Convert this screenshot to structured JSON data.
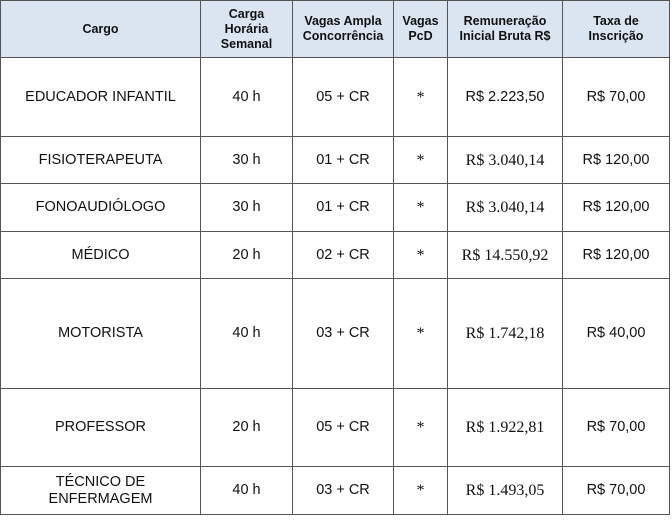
{
  "table": {
    "header": [
      "Cargo",
      "Carga\nHorária\nSemanal",
      "Vagas Ampla\nConcorrência",
      "Vagas\nPcD",
      "Remuneração\nInicial Bruta R$",
      "Taxa de\nInscrição"
    ],
    "rows": [
      [
        "EDUCADOR INFANTIL",
        "40 h",
        "05 + CR",
        "*",
        "R$ 2.223,50",
        "R$ 70,00"
      ],
      [
        "FISIOTERAPEUTA",
        "30 h",
        "01 + CR",
        "*",
        "R$ 3.040,14",
        "R$ 120,00"
      ],
      [
        "FONOAUDIÓLOGO",
        "30 h",
        "01 + CR",
        "*",
        "R$ 3.040,14",
        "R$ 120,00"
      ],
      [
        "MÉDICO",
        "20 h",
        "02 + CR",
        "*",
        "R$ 14.550,92",
        "R$ 120,00"
      ],
      [
        "MOTORISTA",
        "40 h",
        "03 + CR",
        "*",
        "R$ 1.742,18",
        "R$ 40,00"
      ],
      [
        "PROFESSOR",
        "20 h",
        "05 + CR",
        "*",
        "R$ 1.922,81",
        "R$ 70,00"
      ],
      [
        "TÉCNICO DE\nENFERMAGEM",
        "40 h",
        "03 + CR",
        "*",
        "R$ 1.493,05",
        "R$ 70,00"
      ]
    ]
  }
}
